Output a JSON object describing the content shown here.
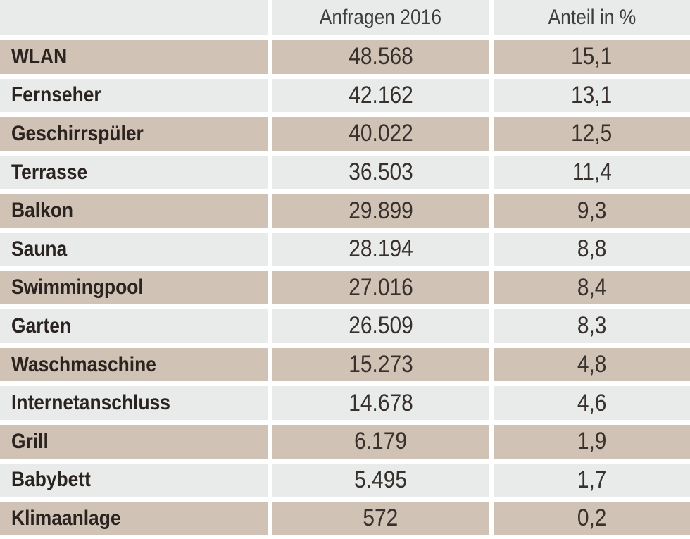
{
  "table": {
    "header": {
      "label_column": "",
      "anfragen": "Anfragen 2016",
      "anteil": "Anteil in %"
    },
    "rows": [
      {
        "label": "WLAN",
        "anfragen": "48.568",
        "anteil": "15,1"
      },
      {
        "label": "Fernseher",
        "anfragen": "42.162",
        "anteil": "13,1"
      },
      {
        "label": "Geschirrspüler",
        "anfragen": "40.022",
        "anteil": "12,5"
      },
      {
        "label": "Terrasse",
        "anfragen": "36.503",
        "anteil": "11,4"
      },
      {
        "label": "Balkon",
        "anfragen": "29.899",
        "anteil": "9,3"
      },
      {
        "label": "Sauna",
        "anfragen": "28.194",
        "anteil": "8,8"
      },
      {
        "label": "Swimmingpool",
        "anfragen": "27.016",
        "anteil": "8,4"
      },
      {
        "label": "Garten",
        "anfragen": "26.509",
        "anteil": "8,3"
      },
      {
        "label": "Waschmaschine",
        "anfragen": "15.273",
        "anteil": "4,8"
      },
      {
        "label": "Internetanschluss",
        "anfragen": "14.678",
        "anteil": "4,6"
      },
      {
        "label": "Grill",
        "anfragen": "6.179",
        "anteil": "1,9"
      },
      {
        "label": "Babybett",
        "anfragen": "5.495",
        "anteil": "1,7"
      },
      {
        "label": "Klimaanlage",
        "anfragen": "572",
        "anteil": "0,2"
      }
    ]
  },
  "colors": {
    "row_tan": "#d0c2b4",
    "row_gray": "#e9ebea",
    "gutter_white": "#ffffff",
    "label_text": "#2b2320",
    "value_text": "#37302c",
    "header_text": "#3f3e3e"
  },
  "chart_data": {
    "type": "table",
    "title": "",
    "columns": [
      "",
      "Anfragen 2016",
      "Anteil in %"
    ],
    "categories": [
      "WLAN",
      "Fernseher",
      "Geschirrspüler",
      "Terrasse",
      "Balkon",
      "Sauna",
      "Swimmingpool",
      "Garten",
      "Waschmaschine",
      "Internetanschluss",
      "Grill",
      "Babybett",
      "Klimaanlage"
    ],
    "series": [
      {
        "name": "Anfragen 2016",
        "values": [
          48568,
          42162,
          40022,
          36503,
          29899,
          28194,
          27016,
          26509,
          15273,
          14678,
          6179,
          5495,
          572
        ]
      },
      {
        "name": "Anteil in %",
        "values": [
          15.1,
          13.1,
          12.5,
          11.4,
          9.3,
          8.8,
          8.4,
          8.3,
          4.8,
          4.6,
          1.9,
          1.7,
          0.2
        ]
      }
    ],
    "layout": {
      "grid": false,
      "legend": "none",
      "row_striping": [
        "tan",
        "gray"
      ]
    }
  }
}
